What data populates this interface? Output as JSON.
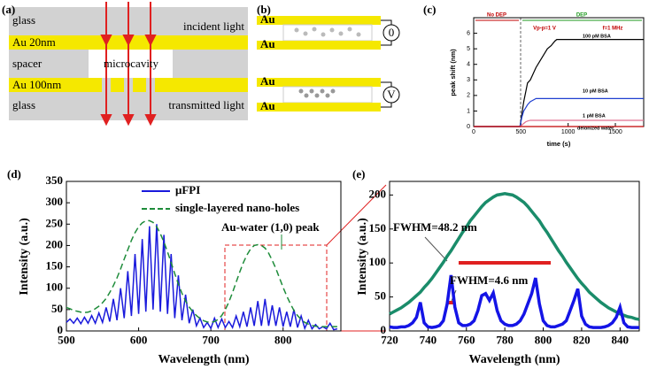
{
  "panel_a": {
    "label": "(a)",
    "glass_top": "glass",
    "au_top": "Au 20nm",
    "spacer": "spacer",
    "au_bottom": "Au 100nm",
    "glass_bottom": "glass",
    "incident": "incident light",
    "microcavity": "microcavity",
    "transmitted": "transmitted light"
  },
  "panel_b": {
    "label": "(b)",
    "au": [
      "Au",
      "Au",
      "Au",
      "Au"
    ],
    "meters": [
      "0",
      "V"
    ]
  },
  "chart_data": [
    {
      "type": "line",
      "panel_label": "(c)",
      "xlabel": "time (s)",
      "ylabel": "peak shift (nm)",
      "xlim": [
        0,
        1800
      ],
      "ylim": [
        0,
        7
      ],
      "xticks": [
        0,
        500,
        1000,
        1500
      ],
      "yticks": [
        0,
        1,
        2,
        3,
        4,
        5,
        6
      ],
      "legend": "inline",
      "annotations": [
        "No DEP",
        "DEP",
        "Vp-p=1 V",
        "f=1 MHz"
      ],
      "x": [
        0,
        490,
        510,
        530,
        550,
        570,
        600,
        630,
        660,
        700,
        740,
        780,
        820,
        860,
        880,
        1800
      ],
      "series": [
        {
          "name": "100 pM BSA",
          "color": "#000000",
          "values": [
            0,
            0,
            0.8,
            1.6,
            2.2,
            2.8,
            3.0,
            3.4,
            3.8,
            4.2,
            4.6,
            5.0,
            5.2,
            5.5,
            5.6,
            5.6
          ]
        },
        {
          "name": "10 pM BSA",
          "color": "#1f3fd0",
          "values": [
            0,
            0,
            0.6,
            1.0,
            1.2,
            1.4,
            1.6,
            1.7,
            1.8,
            1.8,
            1.8,
            1.8,
            1.8,
            1.8,
            1.8,
            1.8
          ]
        },
        {
          "name": "1 pM BSA",
          "color": "#e07090",
          "values": [
            0,
            0,
            0.1,
            0.2,
            0.3,
            0.35,
            0.4,
            0.4,
            0.4,
            0.4,
            0.4,
            0.4,
            0.4,
            0.4,
            0.4,
            0.4
          ]
        },
        {
          "name": "deionized water",
          "color": "#c00000",
          "values": [
            0,
            0,
            0,
            0,
            0,
            0,
            0,
            0,
            0,
            0,
            0,
            0,
            0,
            0,
            0,
            0
          ]
        }
      ]
    },
    {
      "type": "line",
      "panel_label": "(d)",
      "xlabel": "Wavelength (nm)",
      "ylabel": "Intensity (a.u.)",
      "xlim": [
        500,
        880
      ],
      "ylim": [
        0,
        350
      ],
      "xticks": [
        500,
        600,
        700,
        800
      ],
      "yticks": [
        0,
        50,
        100,
        150,
        200,
        250,
        300,
        350
      ],
      "legend": "upper left",
      "annotations": [
        "Au-water (1,0) peak"
      ],
      "x": [
        500,
        505,
        510,
        515,
        520,
        525,
        530,
        535,
        540,
        545,
        550,
        555,
        560,
        565,
        570,
        575,
        580,
        585,
        590,
        595,
        600,
        605,
        610,
        615,
        620,
        625,
        630,
        635,
        640,
        645,
        650,
        655,
        660,
        665,
        670,
        675,
        680,
        685,
        690,
        695,
        700,
        705,
        710,
        715,
        720,
        725,
        730,
        735,
        740,
        745,
        750,
        755,
        760,
        765,
        770,
        775,
        780,
        785,
        790,
        795,
        800,
        805,
        810,
        815,
        820,
        825,
        830,
        835,
        840,
        845,
        850,
        855,
        860,
        865,
        870,
        875
      ],
      "series": [
        {
          "name": "μFPI",
          "color": "#1a1adc",
          "linestyle": "solid",
          "values": [
            20,
            28,
            18,
            30,
            17,
            32,
            18,
            36,
            18,
            42,
            20,
            55,
            22,
            75,
            25,
            100,
            30,
            140,
            35,
            180,
            40,
            215,
            45,
            245,
            50,
            250,
            45,
            225,
            40,
            180,
            30,
            130,
            25,
            85,
            18,
            50,
            12,
            30,
            8,
            20,
            6,
            30,
            8,
            28,
            8,
            22,
            8,
            35,
            10,
            45,
            10,
            55,
            12,
            70,
            12,
            75,
            12,
            60,
            12,
            55,
            10,
            45,
            10,
            50,
            8,
            35,
            6,
            25,
            5,
            15,
            5,
            10,
            5,
            18,
            3,
            5
          ]
        },
        {
          "name": "single-layered nano-holes",
          "color": "#1e8c3a",
          "linestyle": "dashed",
          "values": [
            55,
            52,
            48,
            46,
            44,
            43,
            44,
            47,
            52,
            58,
            66,
            76,
            90,
            106,
            124,
            145,
            168,
            190,
            212,
            230,
            244,
            253,
            258,
            258,
            254,
            244,
            228,
            208,
            185,
            160,
            134,
            110,
            88,
            70,
            56,
            45,
            36,
            29,
            24,
            21,
            20,
            22,
            27,
            36,
            50,
            68,
            90,
            114,
            138,
            160,
            178,
            192,
            200,
            202,
            200,
            194,
            182,
            165,
            146,
            124,
            102,
            82,
            64,
            48,
            36,
            27,
            20,
            16,
            13,
            11,
            10,
            10,
            10,
            10,
            10,
            10
          ]
        }
      ]
    },
    {
      "type": "line",
      "panel_label": "(e)",
      "xlabel": "Wavelength (nm)",
      "ylabel": "Intensity (a.u.)",
      "xlim": [
        720,
        850
      ],
      "ylim": [
        0,
        220
      ],
      "xticks": [
        720,
        740,
        760,
        780,
        800,
        820,
        840
      ],
      "yticks": [
        0,
        50,
        100,
        150,
        200
      ],
      "annotations": [
        "FWHM=48.2 nm",
        "FWHM=4.6 nm"
      ],
      "x": [
        720,
        722,
        724,
        726,
        728,
        730,
        732,
        734,
        736,
        738,
        740,
        742,
        744,
        746,
        748,
        750,
        752,
        754,
        756,
        758,
        760,
        762,
        764,
        766,
        768,
        770,
        772,
        774,
        776,
        778,
        780,
        782,
        784,
        786,
        788,
        790,
        792,
        794,
        796,
        798,
        800,
        802,
        804,
        806,
        808,
        810,
        812,
        814,
        816,
        818,
        820,
        822,
        824,
        826,
        828,
        830,
        832,
        834,
        836,
        838,
        840,
        842,
        844,
        846,
        848,
        850
      ],
      "series": [
        {
          "color": "#1a8c6a",
          "linestyle": "solid",
          "values": [
            25,
            28,
            31,
            34,
            38,
            42,
            47,
            52,
            57,
            64,
            70,
            77,
            85,
            93,
            101,
            110,
            118,
            127,
            136,
            145,
            153,
            162,
            169,
            176,
            183,
            189,
            193,
            197,
            200,
            201,
            202,
            201,
            200,
            197,
            193,
            189,
            183,
            176,
            169,
            162,
            153,
            145,
            136,
            127,
            118,
            110,
            101,
            93,
            85,
            77,
            70,
            64,
            57,
            52,
            47,
            42,
            38,
            34,
            31,
            28,
            25,
            23,
            21,
            20,
            18,
            17
          ]
        },
        {
          "color": "#1414e6",
          "linestyle": "solid",
          "values": [
            6,
            5,
            5,
            6,
            6,
            8,
            12,
            20,
            42,
            12,
            6,
            5,
            6,
            8,
            15,
            40,
            82,
            35,
            12,
            8,
            8,
            10,
            15,
            30,
            52,
            55,
            45,
            56,
            30,
            15,
            10,
            8,
            8,
            10,
            15,
            25,
            40,
            55,
            78,
            40,
            15,
            8,
            6,
            6,
            8,
            10,
            15,
            30,
            45,
            62,
            22,
            10,
            6,
            5,
            5,
            5,
            6,
            8,
            12,
            20,
            35,
            12,
            6,
            5,
            5,
            5
          ]
        }
      ]
    }
  ]
}
